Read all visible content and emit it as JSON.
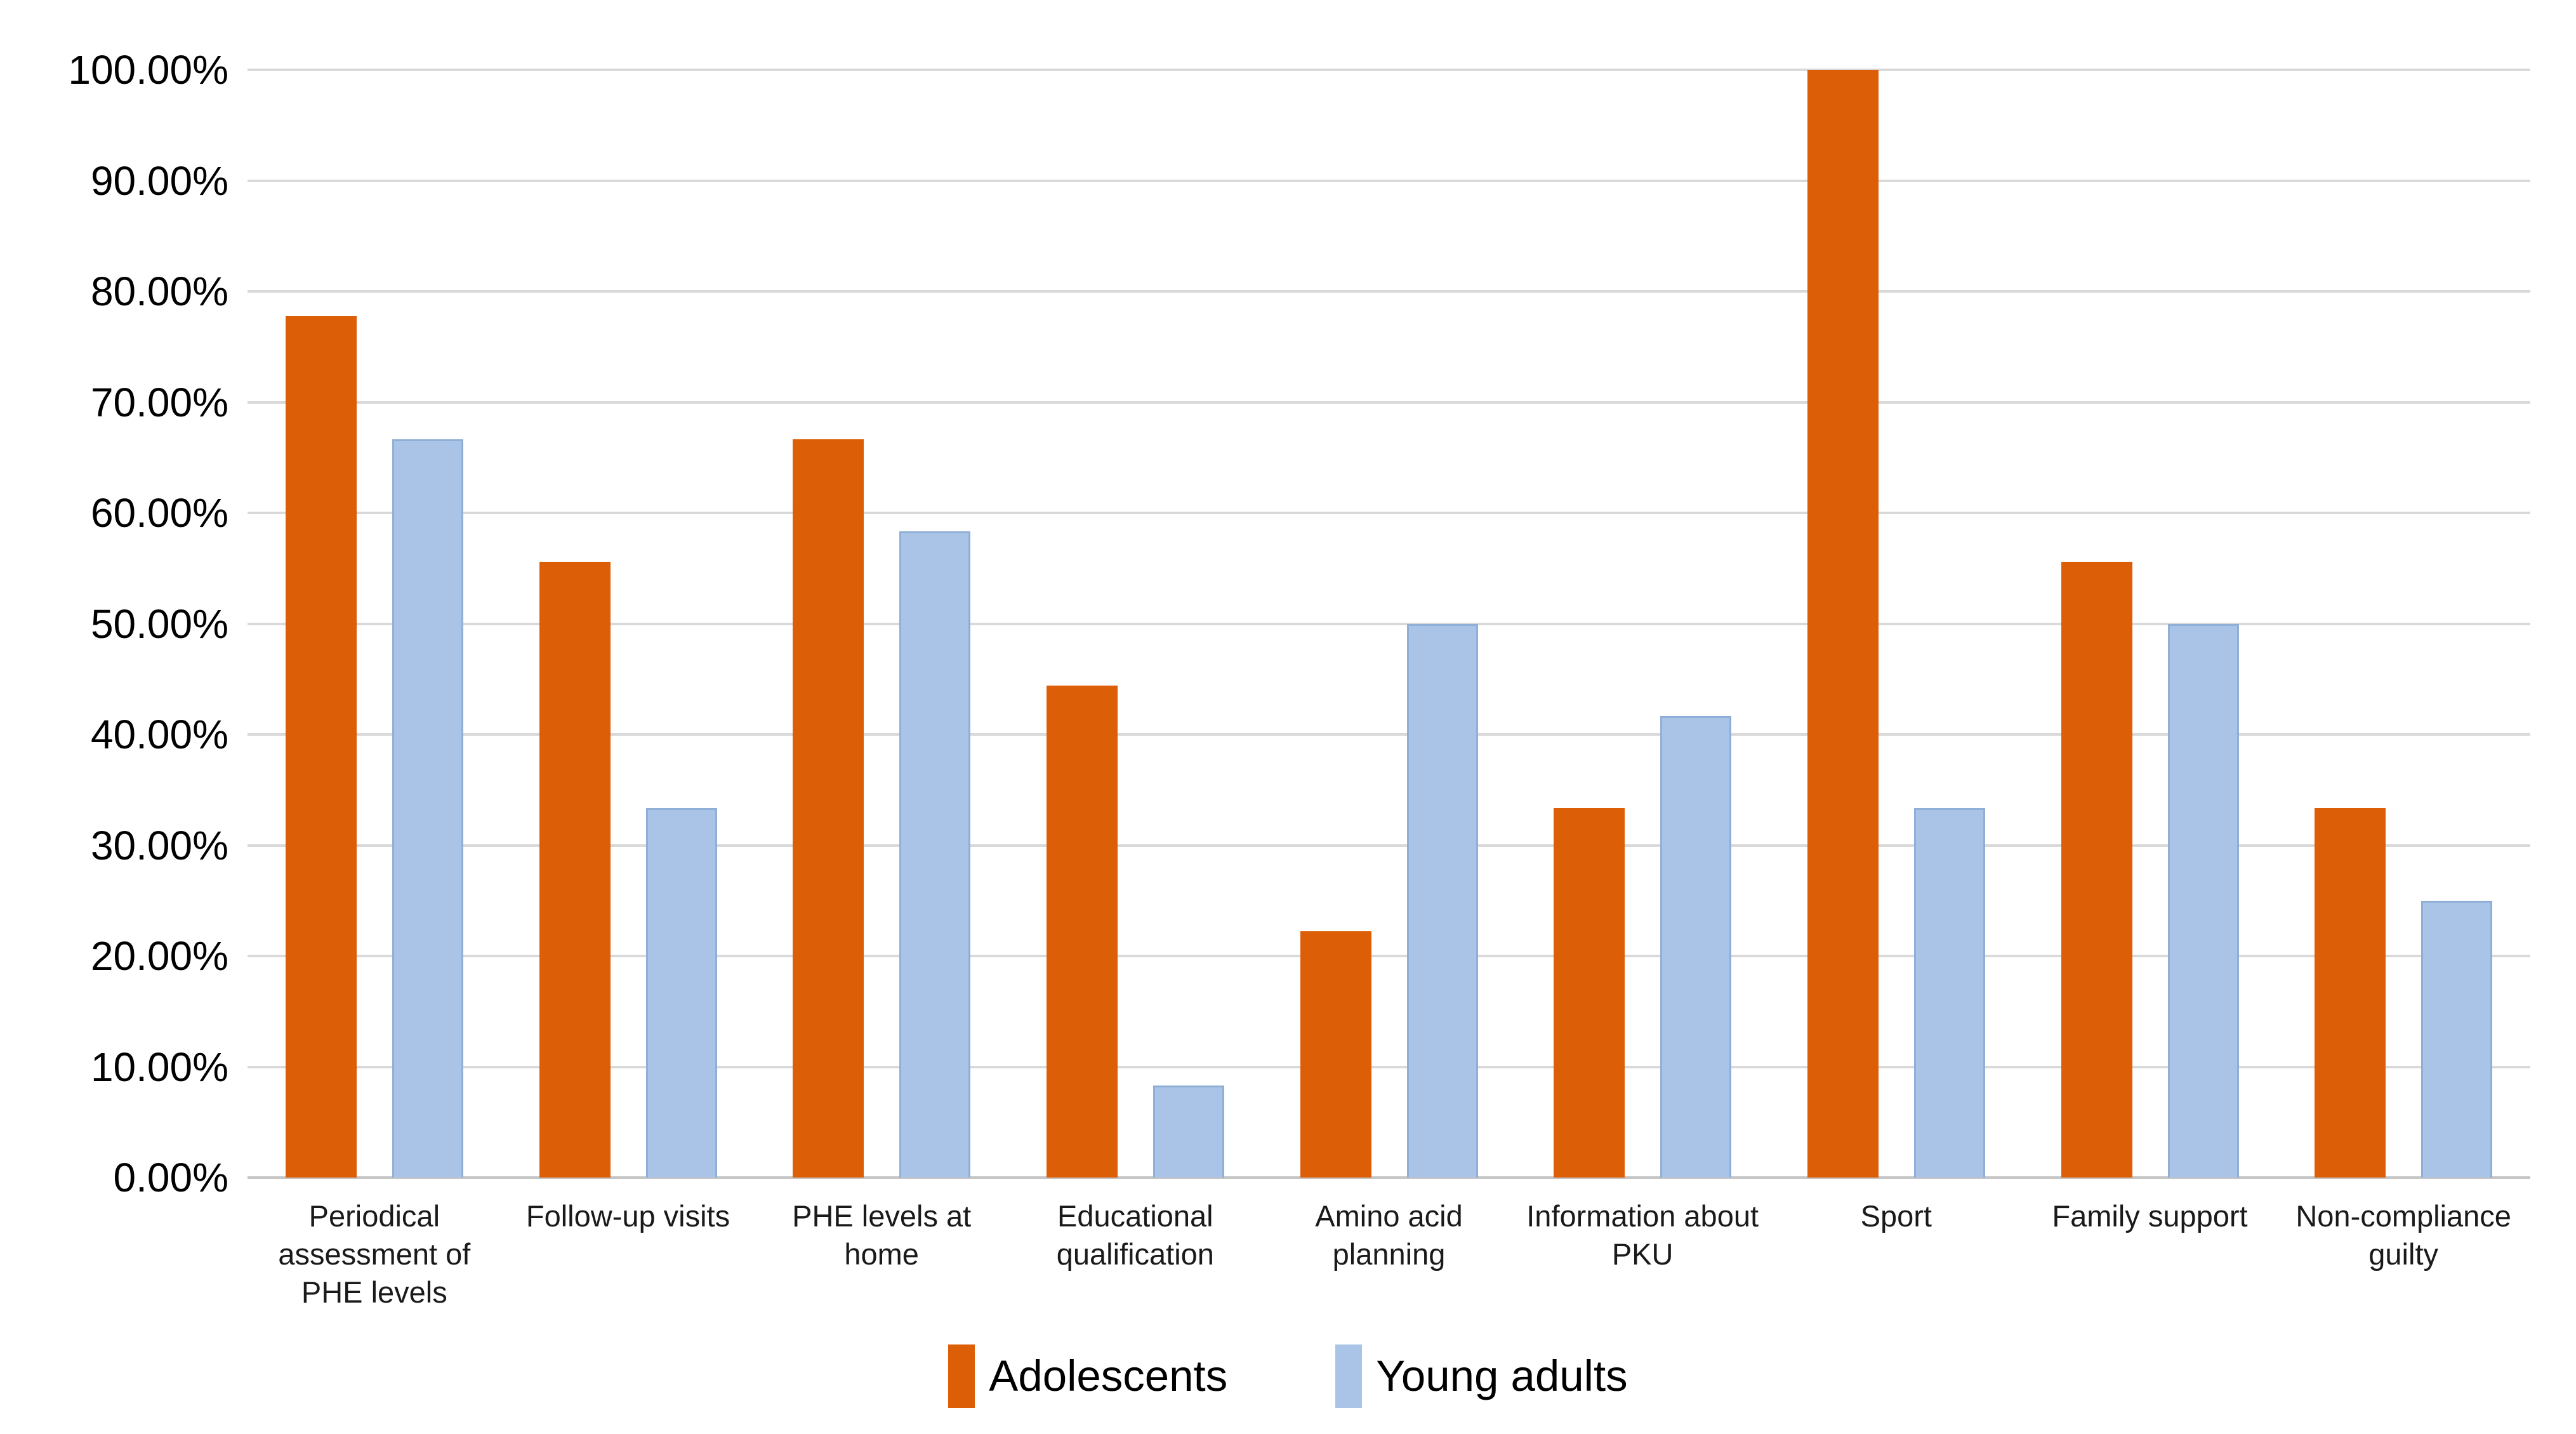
{
  "chart_data": {
    "type": "bar",
    "title": "",
    "categories": [
      "Periodical assessment of PHE levels",
      "Follow-up visits",
      "PHE levels at home",
      "Educational qualification",
      "Amino acid planning",
      "Information about PKU",
      "Sport",
      "Family support",
      "Non-compliance guilty"
    ],
    "series": [
      {
        "name": "Adolescents",
        "color": "#dc5e07",
        "values": [
          77.78,
          55.56,
          66.67,
          44.44,
          22.22,
          33.33,
          100.0,
          55.56,
          33.33
        ]
      },
      {
        "name": "Young adults",
        "color": "#a9c4e6",
        "border_color": "#8fafd6",
        "values": [
          66.67,
          33.33,
          58.33,
          8.33,
          50.0,
          41.67,
          33.33,
          50.0,
          25.0
        ]
      }
    ],
    "y_axis": {
      "min": 0,
      "max": 100,
      "step": 10,
      "tick_labels": [
        "0.00%",
        "10.00%",
        "20.00%",
        "30.00%",
        "40.00%",
        "50.00%",
        "60.00%",
        "70.00%",
        "80.00%",
        "90.00%",
        "100.00%"
      ]
    },
    "grid": true,
    "legend_position": "bottom",
    "legend": {
      "items": [
        {
          "label": "Adolescents",
          "color": "#dc5e07"
        },
        {
          "label": "Young adults",
          "color": "#a9c4e6"
        }
      ]
    }
  },
  "layout_colors": {
    "gridline": "#d9d9d9",
    "baseline": "#c6c6c6",
    "background": "#ffffff",
    "text": "#000000"
  }
}
